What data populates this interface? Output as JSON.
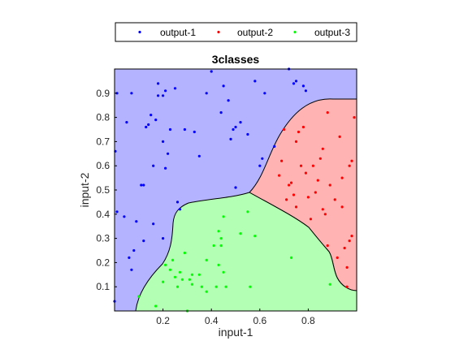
{
  "chart_data": {
    "type": "scatter",
    "title": "3classes",
    "xlabel": "input-1",
    "ylabel": "input-2",
    "xlim": [
      0,
      1
    ],
    "ylim": [
      0,
      1
    ],
    "xticks": [
      "0.2",
      "0.4",
      "0.6",
      "0.8"
    ],
    "xtick_values": [
      0.2,
      0.4,
      0.6,
      0.8
    ],
    "yticks": [
      "0.1",
      "0.2",
      "0.3",
      "0.4",
      "0.5",
      "0.6",
      "0.7",
      "0.8",
      "0.9"
    ],
    "ytick_values": [
      0.1,
      0.2,
      0.3,
      0.4,
      0.5,
      0.6,
      0.7,
      0.8,
      0.9
    ],
    "grid": false,
    "legend_position": "top",
    "legend_orientation": "horizontal",
    "region_colors": {
      "output-1": "#b3b3ff",
      "output-2": "#ffb3b3",
      "output-3": "#b3ffb3"
    },
    "series": [
      {
        "name": "output-1",
        "color": "#0000ff",
        "points": [
          [
            0.003,
            0.66
          ],
          [
            0.01,
            0.9
          ],
          [
            0.01,
            0.41
          ],
          [
            0.05,
            0.78
          ],
          [
            0.04,
            0.39
          ],
          [
            0.06,
            0.22
          ],
          [
            0.07,
            0.17
          ],
          [
            0.08,
            0.25
          ],
          [
            0.07,
            0.9
          ],
          [
            0.09,
            0.37
          ],
          [
            0.11,
            0.52
          ],
          [
            0.12,
            0.52
          ],
          [
            0.12,
            0.29
          ],
          [
            0.13,
            0.76
          ],
          [
            0.14,
            0.77
          ],
          [
            0.15,
            0.81
          ],
          [
            0.16,
            0.6
          ],
          [
            0.16,
            0.36
          ],
          [
            0.17,
            0.79
          ],
          [
            0.18,
            0.89
          ],
          [
            0.18,
            0.94
          ],
          [
            0.2,
            0.3
          ],
          [
            0.2,
            0.7
          ],
          [
            0.2,
            0.89
          ],
          [
            0.21,
            0.91
          ],
          [
            0.21,
            0.59
          ],
          [
            0.22,
            0.65
          ],
          [
            0.23,
            0.75
          ],
          [
            0.25,
            0.92
          ],
          [
            0.26,
            0.45
          ],
          [
            0.27,
            0.42
          ],
          [
            0.29,
            0.75
          ],
          [
            0.33,
            0.74
          ],
          [
            0.4,
            0.99
          ],
          [
            0.38,
            0.9
          ],
          [
            0.35,
            0.64
          ],
          [
            0.44,
            0.82
          ],
          [
            0.45,
            0.93
          ],
          [
            0.47,
            0.87
          ],
          [
            0.48,
            0.71
          ],
          [
            0.49,
            0.75
          ],
          [
            0.5,
            0.76
          ],
          [
            0.5,
            0.51
          ],
          [
            0.52,
            0.78
          ],
          [
            0.55,
            0.73
          ],
          [
            0.58,
            0.95
          ],
          [
            0.6,
            0.6
          ],
          [
            0.61,
            0.63
          ],
          [
            0.62,
            0.9
          ],
          [
            0.66,
            0.68
          ],
          [
            0.72,
            1.0
          ],
          [
            0.74,
            0.94
          ],
          [
            0.75,
            0.95
          ],
          [
            0.78,
            0.93
          ],
          [
            0.79,
            0.91
          ],
          [
            0.0,
            0.04
          ]
        ]
      },
      {
        "name": "output-2",
        "color": "#ff0000",
        "points": [
          [
            0.68,
            0.56
          ],
          [
            0.69,
            0.62
          ],
          [
            0.7,
            0.75
          ],
          [
            0.71,
            0.46
          ],
          [
            0.72,
            0.52
          ],
          [
            0.73,
            0.53
          ],
          [
            0.74,
            0.48
          ],
          [
            0.75,
            0.43
          ],
          [
            0.75,
            0.7
          ],
          [
            0.76,
            0.74
          ],
          [
            0.77,
            0.6
          ],
          [
            0.78,
            0.76
          ],
          [
            0.79,
            0.57
          ],
          [
            0.8,
            0.47
          ],
          [
            0.81,
            0.38
          ],
          [
            0.82,
            0.6
          ],
          [
            0.83,
            0.49
          ],
          [
            0.84,
            0.54
          ],
          [
            0.85,
            0.63
          ],
          [
            0.86,
            0.67
          ],
          [
            0.86,
            0.42
          ],
          [
            0.87,
            0.4
          ],
          [
            0.88,
            0.82
          ],
          [
            0.88,
            0.27
          ],
          [
            0.89,
            0.52
          ],
          [
            0.91,
            0.46
          ],
          [
            0.92,
            0.22
          ],
          [
            0.94,
            0.55
          ],
          [
            0.94,
            0.43
          ],
          [
            0.95,
            0.26
          ],
          [
            0.96,
            0.18
          ],
          [
            0.97,
            0.6
          ],
          [
            0.98,
            0.31
          ],
          [
            0.98,
            0.62
          ],
          [
            0.99,
            0.8
          ],
          [
            0.96,
            0.1
          ],
          [
            0.97,
            0.29
          ],
          [
            0.93,
            0.72
          ]
        ]
      },
      {
        "name": "output-3",
        "color": "#00ff00",
        "points": [
          [
            0.1,
            0.06
          ],
          [
            0.17,
            0.02
          ],
          [
            0.2,
            0.12
          ],
          [
            0.21,
            0.19
          ],
          [
            0.23,
            0.17
          ],
          [
            0.24,
            0.21
          ],
          [
            0.25,
            0.14
          ],
          [
            0.26,
            0.1
          ],
          [
            0.27,
            0.16
          ],
          [
            0.28,
            0.13
          ],
          [
            0.29,
            0.24
          ],
          [
            0.3,
            0.0
          ],
          [
            0.31,
            0.13
          ],
          [
            0.32,
            0.11
          ],
          [
            0.32,
            0.15
          ],
          [
            0.35,
            0.15
          ],
          [
            0.38,
            0.21
          ],
          [
            0.38,
            0.08
          ],
          [
            0.41,
            0.27
          ],
          [
            0.42,
            0.1
          ],
          [
            0.43,
            0.33
          ],
          [
            0.43,
            0.19
          ],
          [
            0.44,
            0.3
          ],
          [
            0.45,
            0.16
          ],
          [
            0.45,
            0.39
          ],
          [
            0.46,
            0.1
          ],
          [
            0.52,
            0.32
          ],
          [
            0.55,
            0.41
          ],
          [
            0.56,
            0.1
          ],
          [
            0.58,
            0.31
          ],
          [
            0.73,
            0.22
          ],
          [
            0.89,
            0.11
          ],
          [
            0.44,
            0.27
          ],
          [
            0.36,
            0.1
          ]
        ]
      }
    ]
  }
}
